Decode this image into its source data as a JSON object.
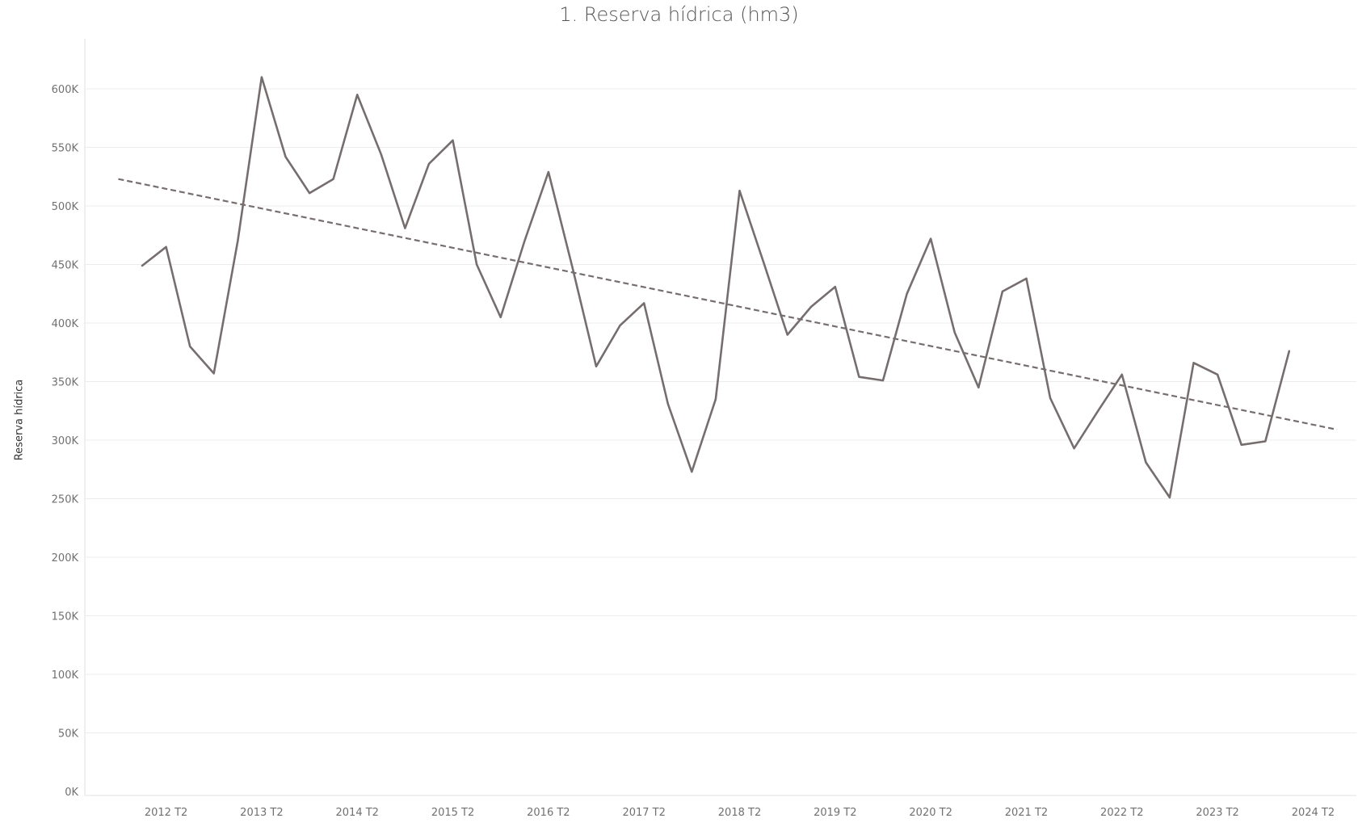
{
  "chart_data": {
    "type": "line",
    "title": "1. Reserva hídrica (hm3)",
    "xlabel": "",
    "ylabel": "Reserva hídrica",
    "ylim": [
      0,
      640000
    ],
    "y_ticks": [
      0,
      50000,
      100000,
      150000,
      200000,
      250000,
      300000,
      350000,
      400000,
      450000,
      500000,
      550000,
      600000
    ],
    "y_tick_labels": [
      "0K",
      "50K",
      "100K",
      "150K",
      "200K",
      "250K",
      "300K",
      "350K",
      "400K",
      "450K",
      "500K",
      "550K",
      "600K"
    ],
    "x_tick_labels": [
      "2012 T2",
      "2013 T2",
      "2014 T2",
      "2015 T2",
      "2016 T2",
      "2017 T2",
      "2018 T2",
      "2019 T2",
      "2020 T2",
      "2021 T2",
      "2022 T2",
      "2023 T2",
      "2024 T2"
    ],
    "x": [
      "2012 T1",
      "2012 T2",
      "2012 T3",
      "2012 T4",
      "2013 T1",
      "2013 T2",
      "2013 T3",
      "2013 T4",
      "2014 T1",
      "2014 T2",
      "2014 T3",
      "2014 T4",
      "2015 T1",
      "2015 T2",
      "2015 T3",
      "2015 T4",
      "2016 T1",
      "2016 T2",
      "2016 T3",
      "2016 T4",
      "2017 T1",
      "2017 T2",
      "2017 T3",
      "2017 T4",
      "2018 T1",
      "2018 T2",
      "2018 T3",
      "2018 T4",
      "2019 T1",
      "2019 T2",
      "2019 T3",
      "2019 T4",
      "2020 T1",
      "2020 T2",
      "2020 T3",
      "2020 T4",
      "2021 T1",
      "2021 T2",
      "2021 T3",
      "2021 T4",
      "2022 T1",
      "2022 T2",
      "2022 T3",
      "2022 T4",
      "2023 T1",
      "2023 T2",
      "2023 T3",
      "2023 T4",
      "2024 T1"
    ],
    "series": [
      {
        "values": [
          449000,
          465000,
          380000,
          357000,
          470000,
          610000,
          542000,
          511000,
          523000,
          595000,
          544000,
          481000,
          536000,
          556000,
          450000,
          405000,
          470000,
          529000,
          448000,
          363000,
          398000,
          417000,
          331000,
          273000,
          335000,
          513000,
          452000,
          390000,
          414000,
          431000,
          354000,
          351000,
          425000,
          472000,
          392000,
          345000,
          427000,
          438000,
          336000,
          293000,
          325000,
          356000,
          281000,
          251000,
          366000,
          356000,
          296000,
          299000,
          376000
        ],
        "color": "#766e6e"
      }
    ],
    "trend_line": {
      "style": "dashed",
      "color": "#766e6e",
      "start": {
        "x": "2011 T4",
        "y": 523000
      },
      "end": {
        "x": "2024 T3",
        "y": 309000
      }
    },
    "grid": {
      "horizontal": true,
      "vertical": false,
      "color": "#ececec"
    }
  }
}
